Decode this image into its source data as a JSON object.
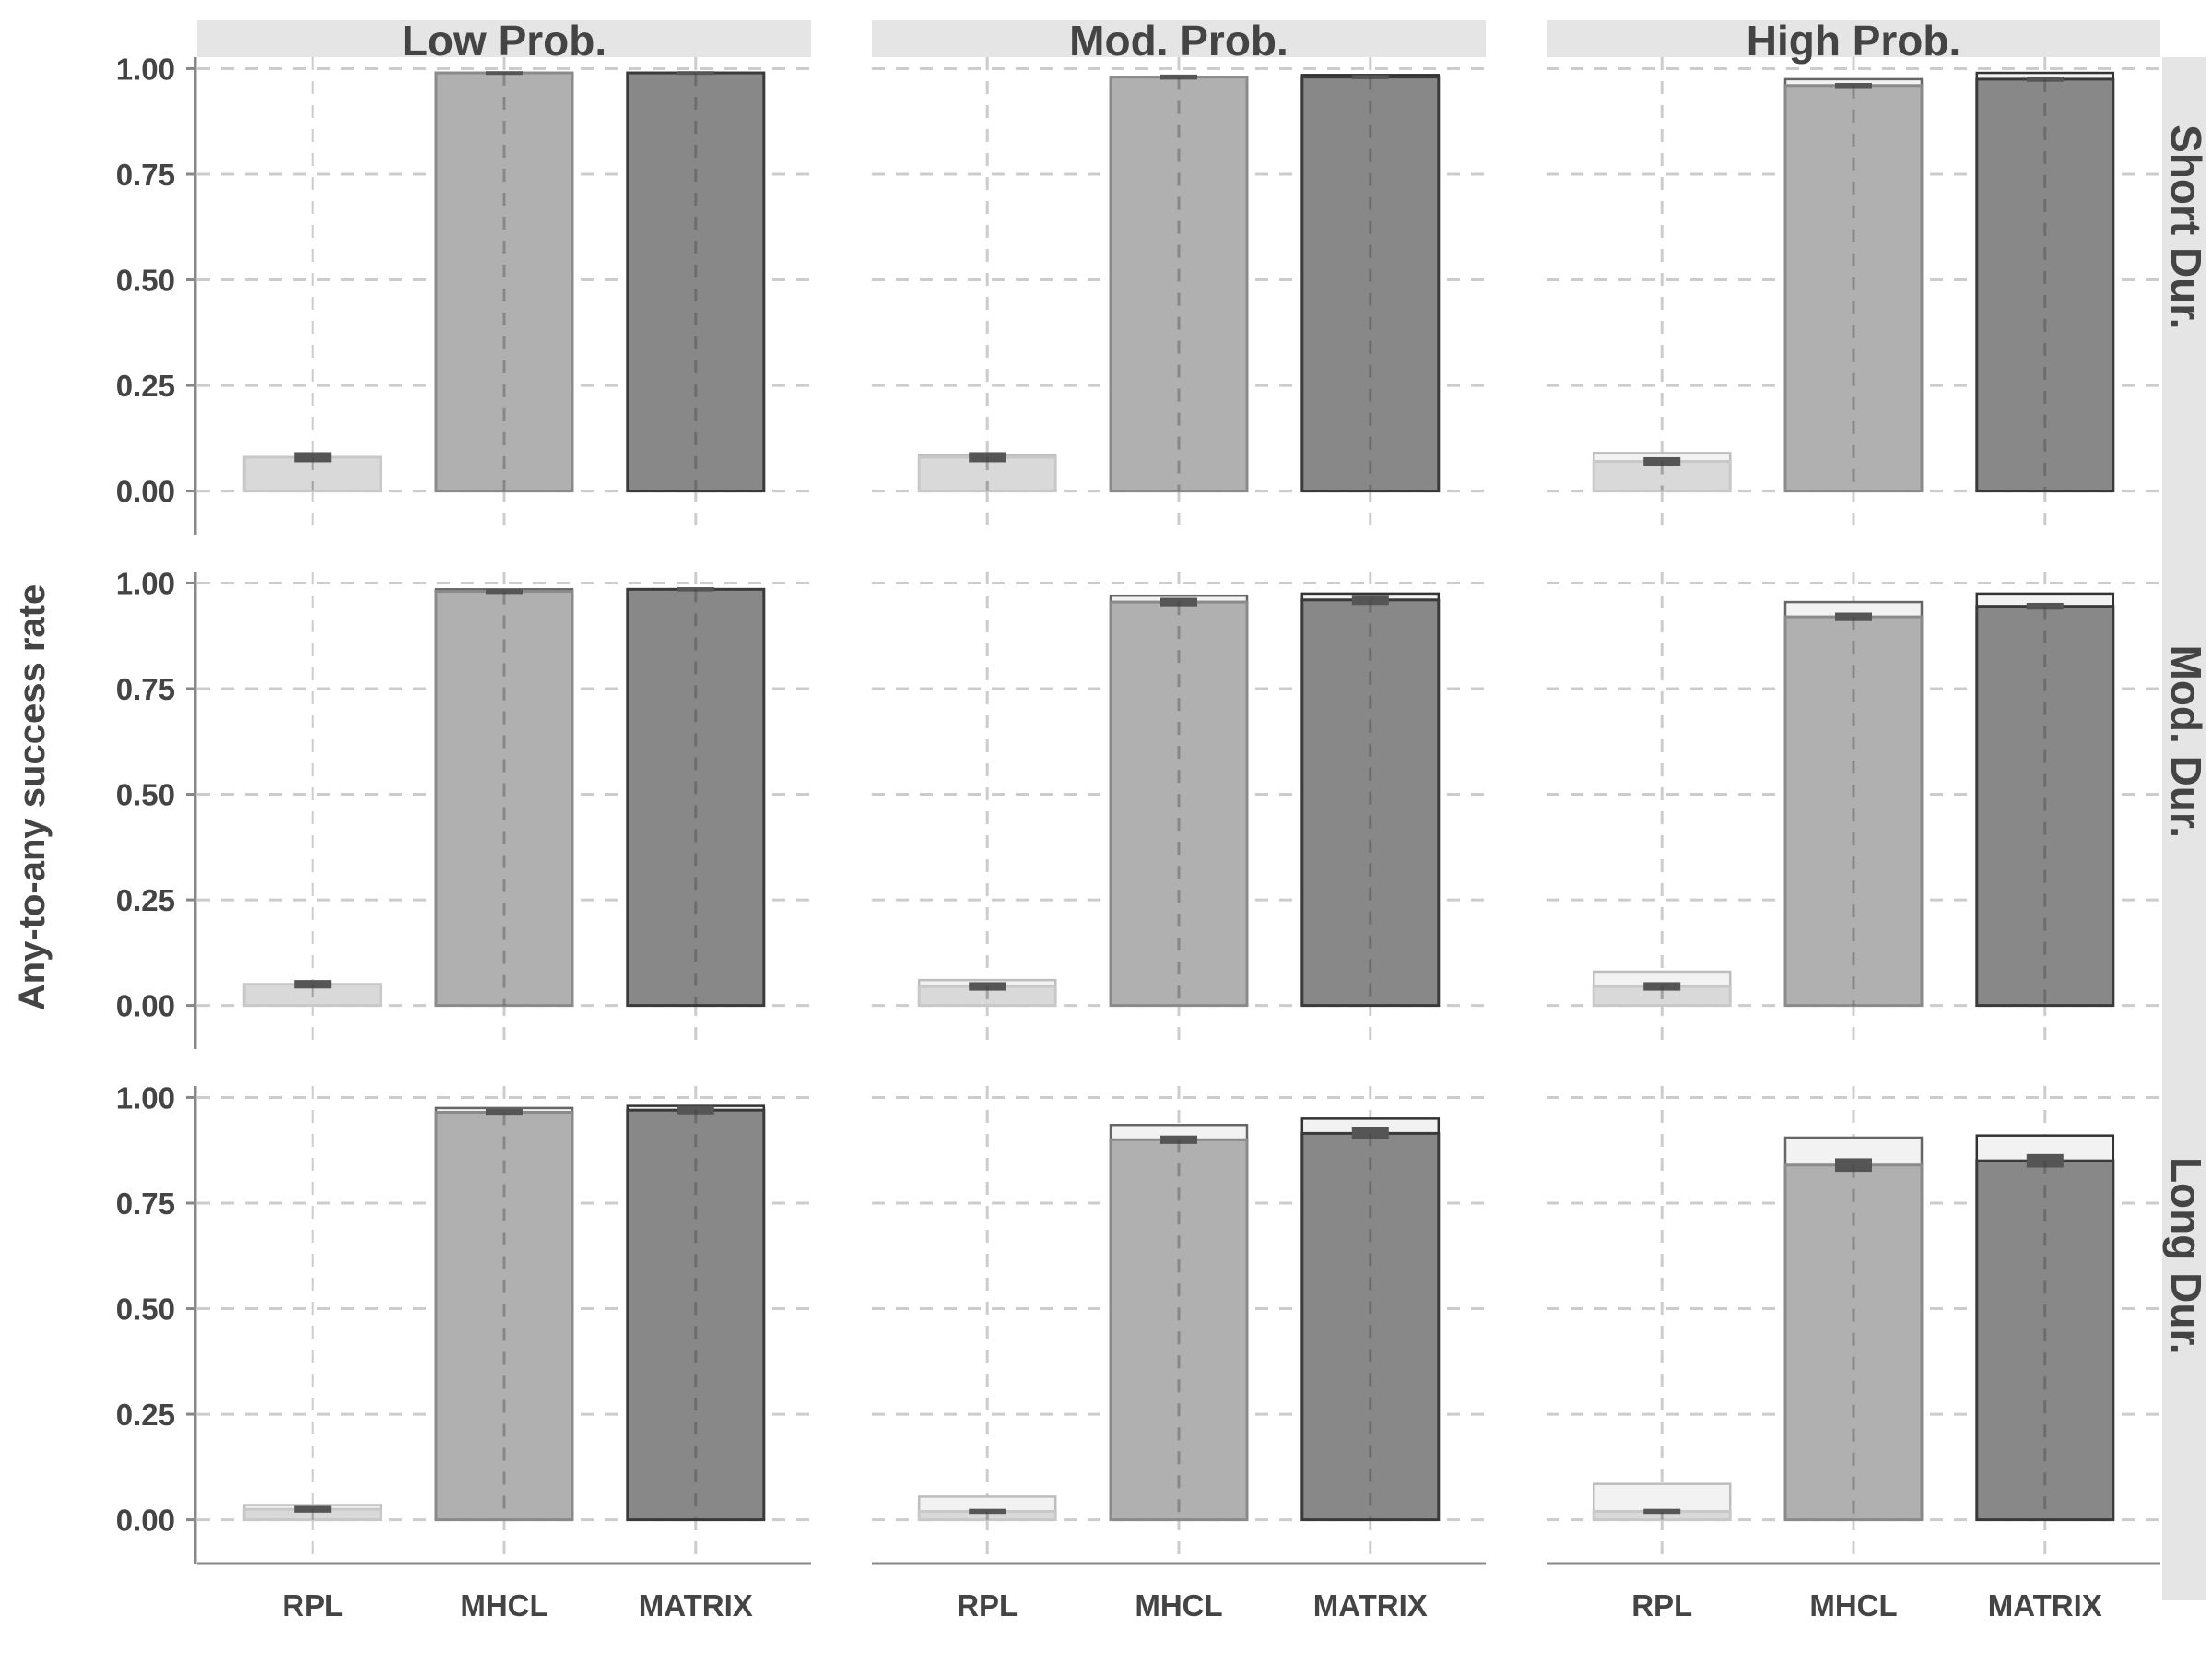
{
  "chart_data": {
    "type": "bar",
    "ylabel": "Any-to-any success rate",
    "xlabel": "",
    "ylim": [
      0,
      1.0
    ],
    "y_ticks": [
      "0.00",
      "0.25",
      "0.50",
      "0.75",
      "1.00"
    ],
    "categories": [
      "RPL",
      "MHCL",
      "MATRIX"
    ],
    "column_facets": [
      "Low Prob.",
      "Mod. Prob.",
      "High Prob."
    ],
    "row_facets": [
      "Short Dur.",
      "Mod. Dur.",
      "Long Dur."
    ],
    "grid": true,
    "colors": {
      "RPL": "#d9d9d9",
      "MHCL": "#b0b0b0",
      "MATRIX": "#888888",
      "ghost_fill": "#f2f2f2",
      "error_bar": "#555555",
      "strip_bg": "#e5e5e5",
      "grid": "#cccccc"
    },
    "panels": [
      {
        "row": "Short Dur.",
        "col": "Low Prob.",
        "values": [
          0.08,
          0.99,
          0.99
        ],
        "upper": [
          0.08,
          0.99,
          0.99
        ],
        "err": [
          0.012,
          0.004,
          0.004
        ]
      },
      {
        "row": "Short Dur.",
        "col": "Mod. Prob.",
        "values": [
          0.08,
          0.98,
          0.98
        ],
        "upper": [
          0.085,
          0.98,
          0.985
        ],
        "err": [
          0.012,
          0.006,
          0.005
        ]
      },
      {
        "row": "Short Dur.",
        "col": "High Prob.",
        "values": [
          0.07,
          0.96,
          0.975
        ],
        "upper": [
          0.09,
          0.975,
          0.99
        ],
        "err": [
          0.01,
          0.006,
          0.006
        ]
      },
      {
        "row": "Mod. Dur.",
        "col": "Low Prob.",
        "values": [
          0.05,
          0.98,
          0.985
        ],
        "upper": [
          0.05,
          0.985,
          0.985
        ],
        "err": [
          0.01,
          0.006,
          0.005
        ]
      },
      {
        "row": "Mod. Dur.",
        "col": "Mod. Prob.",
        "values": [
          0.045,
          0.955,
          0.96
        ],
        "upper": [
          0.06,
          0.97,
          0.975
        ],
        "err": [
          0.01,
          0.01,
          0.012
        ]
      },
      {
        "row": "Mod. Dur.",
        "col": "High Prob.",
        "values": [
          0.045,
          0.92,
          0.945
        ],
        "upper": [
          0.08,
          0.955,
          0.975
        ],
        "err": [
          0.01,
          0.01,
          0.008
        ]
      },
      {
        "row": "Long Dur.",
        "col": "Low Prob.",
        "values": [
          0.025,
          0.965,
          0.97
        ],
        "upper": [
          0.035,
          0.975,
          0.98
        ],
        "err": [
          0.008,
          0.008,
          0.01
        ]
      },
      {
        "row": "Long Dur.",
        "col": "Mod. Prob.",
        "values": [
          0.02,
          0.9,
          0.915
        ],
        "upper": [
          0.055,
          0.935,
          0.95
        ],
        "err": [
          0.006,
          0.01,
          0.014
        ]
      },
      {
        "row": "Long Dur.",
        "col": "High Prob.",
        "values": [
          0.02,
          0.84,
          0.85
        ],
        "upper": [
          0.085,
          0.905,
          0.91
        ],
        "err": [
          0.006,
          0.016,
          0.016
        ]
      }
    ]
  }
}
